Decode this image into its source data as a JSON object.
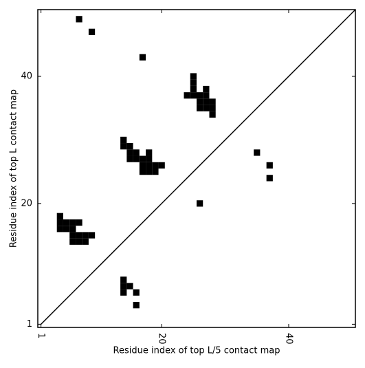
{
  "chart_data": {
    "type": "scatter",
    "marker": "square",
    "color": "#000000",
    "xlabel": "Residue index of top L/5 contact map",
    "ylabel": "Residue index of top L contact map",
    "xlim": [
      0.5,
      50.5
    ],
    "ylim": [
      0.5,
      50.5
    ],
    "xticks": [
      1,
      20,
      40
    ],
    "yticks": [
      1,
      20,
      40
    ],
    "diagonal": true,
    "x": [
      7,
      9,
      17,
      25,
      25,
      25,
      24,
      25,
      26,
      27,
      27,
      26,
      27,
      28,
      26,
      27,
      28,
      28,
      14,
      14,
      15,
      15,
      16,
      15,
      16,
      17,
      18,
      18,
      17,
      18,
      19,
      20,
      17,
      18,
      19,
      4,
      4,
      5,
      6,
      7,
      4,
      5,
      6,
      6,
      7,
      8,
      9,
      6,
      7,
      8,
      14,
      14,
      15,
      14,
      16,
      16,
      35,
      37,
      37,
      26
    ],
    "y": [
      49,
      47,
      43,
      40,
      39,
      38,
      37,
      37,
      37,
      38,
      37,
      36,
      36,
      36,
      35,
      35,
      35,
      34,
      30,
      29,
      29,
      28,
      28,
      27,
      27,
      27,
      28,
      27,
      26,
      26,
      26,
      26,
      25,
      25,
      25,
      18,
      17,
      17,
      17,
      17,
      16,
      16,
      16,
      15,
      15,
      15,
      15,
      14,
      14,
      14,
      8,
      7,
      7,
      6,
      6,
      4,
      28,
      26,
      24,
      20
    ]
  }
}
